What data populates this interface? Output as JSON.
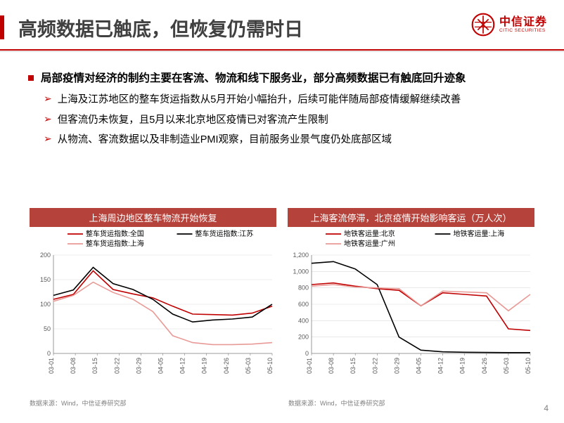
{
  "header": {
    "title": "高频数据已触底，但恢复仍需时日",
    "logo_cn": "中信证券",
    "logo_en": "CITIC SECURITIES"
  },
  "bullets": {
    "main": "局部疫情对经济的制约主要在客流、物流和线下服务业，部分高频数据已有触底回升迹象",
    "sub1": "上海及江苏地区的整车货运指数从5月开始小幅抬升，后续可能伴随局部疫情缓解继续改善",
    "sub2": "但客流仍未恢复，且5月以来北京地区疫情已对客流产生限制",
    "sub3": "从物流、客流数据以及非制造业PMI观察，目前服务业景气度仍处底部区域"
  },
  "chart_left": {
    "title": "上海周边地区整车物流开始恢复",
    "type": "line",
    "background_color": "#ffffff",
    "grid_color": "#d9d9d9",
    "ylim": [
      0,
      200
    ],
    "ytick_step": 50,
    "xticks": [
      "03-01",
      "03-08",
      "03-15",
      "03-22",
      "03-29",
      "04-05",
      "04-12",
      "04-19",
      "04-26",
      "05-03",
      "05-10"
    ],
    "legend_fontsize": 10,
    "axis_fontsize": 9,
    "line_width": 1.6,
    "series": [
      {
        "name": "整车货运指数:全国",
        "color": "#c00000",
        "values": [
          110,
          120,
          168,
          130,
          121,
          113,
          96,
          80,
          79,
          78,
          82,
          96
        ]
      },
      {
        "name": "整车货运指数:江苏",
        "color": "#000000",
        "values": [
          118,
          129,
          175,
          142,
          130,
          110,
          80,
          64,
          68,
          70,
          74,
          100
        ]
      },
      {
        "name": "整车货运指数:上海",
        "color": "#e89a96",
        "values": [
          106,
          118,
          145,
          124,
          110,
          85,
          36,
          22,
          18,
          18,
          19,
          22
        ]
      }
    ]
  },
  "chart_right": {
    "title": "上海客流停滞，北京疫情开始影响客运（万人次）",
    "type": "line",
    "background_color": "#ffffff",
    "grid_color": "#d9d9d9",
    "ylim": [
      0,
      1200
    ],
    "ytick_step": 200,
    "xticks": [
      "03-01",
      "03-08",
      "03-15",
      "03-22",
      "03-29",
      "04-05",
      "04-12",
      "04-19",
      "04-26",
      "05-03",
      "05-10"
    ],
    "legend_fontsize": 10,
    "axis_fontsize": 9,
    "line_width": 1.6,
    "series": [
      {
        "name": "地铁客运量:北京",
        "color": "#c00000",
        "values": [
          840,
          860,
          820,
          790,
          770,
          580,
          740,
          720,
          700,
          300,
          280
        ]
      },
      {
        "name": "地铁客运量:上海",
        "color": "#000000",
        "values": [
          1100,
          1120,
          1030,
          840,
          200,
          40,
          20,
          15,
          12,
          10,
          10
        ]
      },
      {
        "name": "地铁客运量:广州",
        "color": "#e89a96",
        "values": [
          820,
          840,
          810,
          800,
          790,
          580,
          760,
          750,
          740,
          520,
          720
        ]
      }
    ]
  },
  "footnote": "数据来源：Wind，中信证券研究部",
  "pagenum": "4"
}
